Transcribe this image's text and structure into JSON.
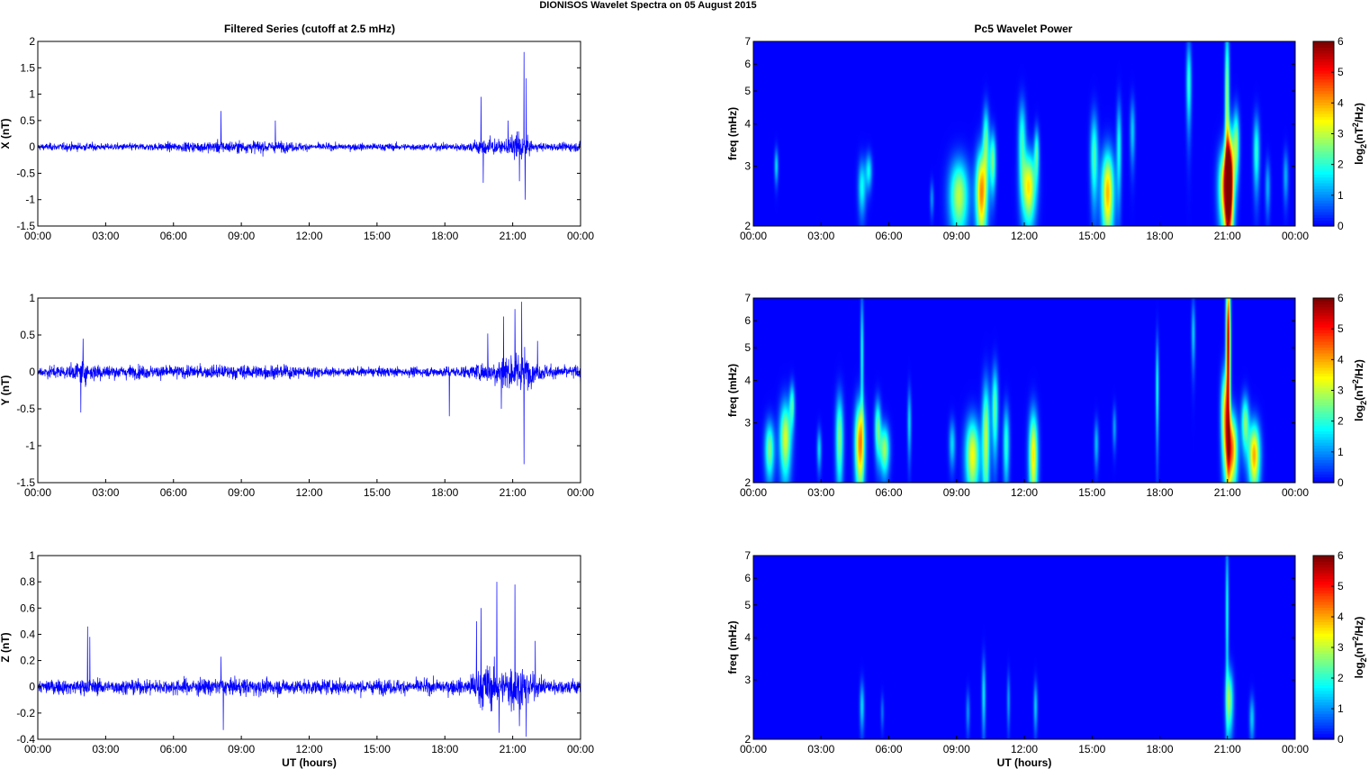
{
  "figure": {
    "title": "DIONISOS Wavelet Spectra on 05 August    2015",
    "left_title": "Filtered Series (cutoff at 2.5 mHz)",
    "right_title": "Pc5 Wavelet Power",
    "xlabel": "UT (hours)",
    "colorbar_label_main": "log",
    "colorbar_label_sub": "2",
    "colorbar_label_mid": "(nT",
    "colorbar_label_sup": "2",
    "colorbar_label_end": "/Hz)",
    "freq_label": "freq (mHz)"
  },
  "chart_data": [
    {
      "type": "line",
      "panel": "X",
      "ylabel": "X (nT)",
      "xlim": [
        0,
        24
      ],
      "ylim": [
        -1.5,
        2
      ],
      "xticks": [
        "00:00",
        "03:00",
        "06:00",
        "09:00",
        "12:00",
        "15:00",
        "18:00",
        "21:00",
        "00:00"
      ],
      "yticks": [
        "-1.5",
        "-1",
        "-0.5",
        "0",
        "0.5",
        "1",
        "1.5",
        "2"
      ],
      "ytick_values": [
        -1.5,
        -1,
        -0.5,
        0,
        0.5,
        1,
        1.5,
        2
      ],
      "color": "#0000ff",
      "noise_profile": {
        "x": [
          0,
          2,
          3,
          5,
          7,
          8,
          9,
          10,
          11,
          12,
          13,
          15,
          17,
          19,
          19.5,
          20,
          20.5,
          21,
          21.3,
          21.6,
          22,
          23,
          24
        ],
        "amplitude": [
          0.08,
          0.1,
          0.08,
          0.09,
          0.12,
          0.15,
          0.14,
          0.15,
          0.12,
          0.09,
          0.08,
          0.09,
          0.08,
          0.1,
          0.2,
          0.25,
          0.12,
          0.25,
          0.45,
          0.2,
          0.1,
          0.09,
          0.12
        ]
      },
      "spikes": [
        [
          8.1,
          0.68
        ],
        [
          10.5,
          0.5
        ],
        [
          19.6,
          0.95
        ],
        [
          19.7,
          -0.68
        ],
        [
          21.5,
          1.8
        ],
        [
          21.55,
          -1.0
        ],
        [
          21.6,
          1.3
        ],
        [
          21.3,
          -0.65
        ],
        [
          20.8,
          0.5
        ],
        [
          24,
          0.3
        ]
      ]
    },
    {
      "type": "line",
      "panel": "Y",
      "ylabel": "Y (nT)",
      "xlim": [
        0,
        24
      ],
      "ylim": [
        -1.5,
        1
      ],
      "xticks": [
        "00:00",
        "03:00",
        "06:00",
        "09:00",
        "12:00",
        "15:00",
        "18:00",
        "21:00",
        "00:00"
      ],
      "yticks": [
        "-1.5",
        "-1",
        "-0.5",
        "0",
        "0.5",
        "1"
      ],
      "ytick_values": [
        -1.5,
        -1,
        -0.5,
        0,
        0.5,
        1
      ],
      "color": "#0000ff",
      "noise_profile": {
        "x": [
          0,
          1.5,
          2,
          3,
          5,
          7,
          9,
          10.5,
          12,
          13,
          15,
          17,
          19,
          20,
          20.5,
          21,
          21.5,
          22,
          23,
          24
        ],
        "amplitude": [
          0.1,
          0.12,
          0.2,
          0.12,
          0.11,
          0.11,
          0.12,
          0.12,
          0.1,
          0.07,
          0.08,
          0.08,
          0.1,
          0.2,
          0.3,
          0.3,
          0.35,
          0.15,
          0.1,
          0.12
        ]
      },
      "spikes": [
        [
          1.9,
          -0.55
        ],
        [
          2.0,
          0.45
        ],
        [
          18.2,
          -0.6
        ],
        [
          19.9,
          0.52
        ],
        [
          20.5,
          -0.5
        ],
        [
          20.6,
          0.75
        ],
        [
          21.1,
          0.85
        ],
        [
          21.5,
          -1.25
        ],
        [
          21.4,
          0.95
        ],
        [
          22.1,
          0.42
        ],
        [
          24,
          -0.25
        ]
      ]
    },
    {
      "type": "line",
      "panel": "Z",
      "ylabel": "Z (nT)",
      "xlim": [
        0,
        24
      ],
      "ylim": [
        -0.4,
        1
      ],
      "xticks": [
        "00:00",
        "03:00",
        "06:00",
        "09:00",
        "12:00",
        "15:00",
        "18:00",
        "21:00",
        "00:00"
      ],
      "yticks": [
        "-0.4",
        "-0.2",
        "0",
        "0.2",
        "0.4",
        "0.6",
        "0.8",
        "1"
      ],
      "ytick_values": [
        -0.4,
        -0.2,
        0,
        0.2,
        0.4,
        0.6,
        0.8,
        1
      ],
      "color": "#0000ff",
      "noise_profile": {
        "x": [
          0,
          2,
          3,
          5,
          7,
          8,
          10,
          12,
          14,
          16,
          18,
          19,
          19.5,
          20,
          20.5,
          21,
          21.5,
          22,
          23,
          24
        ],
        "amplitude": [
          0.06,
          0.08,
          0.07,
          0.07,
          0.08,
          0.08,
          0.08,
          0.07,
          0.07,
          0.07,
          0.07,
          0.08,
          0.2,
          0.22,
          0.15,
          0.25,
          0.2,
          0.1,
          0.07,
          0.08
        ]
      },
      "spikes": [
        [
          2.2,
          0.46
        ],
        [
          2.3,
          0.38
        ],
        [
          8.2,
          -0.33
        ],
        [
          8.1,
          0.23
        ],
        [
          19.4,
          0.5
        ],
        [
          19.6,
          0.6
        ],
        [
          20.3,
          0.8
        ],
        [
          20.4,
          -0.35
        ],
        [
          21.1,
          0.78
        ],
        [
          21.3,
          -0.3
        ],
        [
          21.6,
          -0.38
        ],
        [
          22.0,
          0.35
        ],
        [
          24,
          0.16
        ]
      ]
    },
    {
      "type": "heatmap",
      "panel": "X wavelet",
      "ylabel": "freq (mHz)",
      "xlim": [
        0,
        24
      ],
      "ylim": [
        2,
        7
      ],
      "yscale": "log",
      "xticks": [
        "00:00",
        "03:00",
        "06:00",
        "09:00",
        "12:00",
        "15:00",
        "18:00",
        "21:00",
        "00:00"
      ],
      "yticks": [
        "2",
        "3",
        "4",
        "5",
        "6",
        "7"
      ],
      "ytick_values": [
        2,
        3,
        4,
        5,
        6,
        7
      ],
      "colorbar": {
        "min": 0,
        "max": 6,
        "ticks": [
          "0",
          "1",
          "2",
          "3",
          "4",
          "5",
          "6"
        ],
        "colormap": "jet"
      },
      "blobs": [
        {
          "t": 1.0,
          "f": 3.0,
          "dt": 0.06,
          "df": 0.25,
          "amp": 1.5
        },
        {
          "t": 4.8,
          "f": 2.6,
          "dt": 0.12,
          "df": 0.35,
          "amp": 1.8
        },
        {
          "t": 5.1,
          "f": 2.9,
          "dt": 0.1,
          "df": 0.25,
          "amp": 1.7
        },
        {
          "t": 7.9,
          "f": 2.4,
          "dt": 0.06,
          "df": 0.2,
          "amp": 1.0
        },
        {
          "t": 9.1,
          "f": 2.45,
          "dt": 0.3,
          "df": 0.45,
          "amp": 3.0
        },
        {
          "t": 10.1,
          "f": 2.5,
          "dt": 0.18,
          "df": 0.55,
          "amp": 4.2
        },
        {
          "t": 10.3,
          "f": 3.6,
          "dt": 0.1,
          "df": 0.6,
          "amp": 2.2
        },
        {
          "t": 10.6,
          "f": 3.1,
          "dt": 0.1,
          "df": 0.45,
          "amp": 2.5
        },
        {
          "t": 11.9,
          "f": 3.6,
          "dt": 0.12,
          "df": 0.7,
          "amp": 2.0
        },
        {
          "t": 12.2,
          "f": 2.6,
          "dt": 0.22,
          "df": 0.45,
          "amp": 3.6
        },
        {
          "t": 12.55,
          "f": 3.3,
          "dt": 0.08,
          "df": 0.4,
          "amp": 2.0
        },
        {
          "t": 15.1,
          "f": 3.2,
          "dt": 0.12,
          "df": 0.7,
          "amp": 2.2
        },
        {
          "t": 15.7,
          "f": 2.5,
          "dt": 0.2,
          "df": 0.55,
          "amp": 3.9
        },
        {
          "t": 16.2,
          "f": 3.4,
          "dt": 0.08,
          "df": 0.8,
          "amp": 1.8
        },
        {
          "t": 16.8,
          "f": 3.8,
          "dt": 0.08,
          "df": 0.6,
          "amp": 1.4
        },
        {
          "t": 19.3,
          "f": 5.3,
          "dt": 0.08,
          "df": 1.1,
          "amp": 2.0
        },
        {
          "t": 20.9,
          "f": 2.6,
          "dt": 0.2,
          "df": 0.5,
          "amp": 3.8
        },
        {
          "t": 21.0,
          "f": 4.8,
          "dt": 0.07,
          "df": 1.8,
          "amp": 2.8
        },
        {
          "t": 21.1,
          "f": 2.7,
          "dt": 0.13,
          "df": 0.7,
          "amp": 6.0
        },
        {
          "t": 21.4,
          "f": 3.5,
          "dt": 0.1,
          "df": 0.6,
          "amp": 2.6
        },
        {
          "t": 22.3,
          "f": 3.3,
          "dt": 0.1,
          "df": 0.6,
          "amp": 2.0
        },
        {
          "t": 22.8,
          "f": 2.6,
          "dt": 0.08,
          "df": 0.35,
          "amp": 1.2
        },
        {
          "t": 23.6,
          "f": 2.8,
          "dt": 0.08,
          "df": 0.35,
          "amp": 1.2
        }
      ]
    },
    {
      "type": "heatmap",
      "panel": "Y wavelet",
      "ylabel": "freq (mHz)",
      "xlim": [
        0,
        24
      ],
      "ylim": [
        2,
        7
      ],
      "yscale": "log",
      "xticks": [
        "00:00",
        "03:00",
        "06:00",
        "09:00",
        "12:00",
        "15:00",
        "18:00",
        "21:00",
        "00:00"
      ],
      "yticks": [
        "2",
        "3",
        "4",
        "5",
        "6",
        "7"
      ],
      "ytick_values": [
        2,
        3,
        4,
        5,
        6,
        7
      ],
      "colorbar": {
        "min": 0,
        "max": 6,
        "ticks": [
          "0",
          "1",
          "2",
          "3",
          "4",
          "5",
          "6"
        ],
        "colormap": "jet"
      },
      "blobs": [
        {
          "t": 0.7,
          "f": 2.5,
          "dt": 0.15,
          "df": 0.35,
          "amp": 2.6
        },
        {
          "t": 1.4,
          "f": 2.7,
          "dt": 0.18,
          "df": 0.5,
          "amp": 3.2
        },
        {
          "t": 1.7,
          "f": 3.4,
          "dt": 0.08,
          "df": 0.35,
          "amp": 2.0
        },
        {
          "t": 2.9,
          "f": 2.5,
          "dt": 0.07,
          "df": 0.25,
          "amp": 1.5
        },
        {
          "t": 3.8,
          "f": 2.7,
          "dt": 0.12,
          "df": 0.6,
          "amp": 2.6
        },
        {
          "t": 4.7,
          "f": 2.6,
          "dt": 0.15,
          "df": 0.55,
          "amp": 4.2
        },
        {
          "t": 4.8,
          "f": 4.8,
          "dt": 0.05,
          "df": 1.5,
          "amp": 1.8
        },
        {
          "t": 5.5,
          "f": 2.9,
          "dt": 0.1,
          "df": 0.4,
          "amp": 2.4
        },
        {
          "t": 5.8,
          "f": 2.5,
          "dt": 0.15,
          "df": 0.3,
          "amp": 2.8
        },
        {
          "t": 6.9,
          "f": 3.0,
          "dt": 0.06,
          "df": 0.5,
          "amp": 1.5
        },
        {
          "t": 8.8,
          "f": 2.6,
          "dt": 0.1,
          "df": 0.3,
          "amp": 1.5
        },
        {
          "t": 9.7,
          "f": 2.4,
          "dt": 0.22,
          "df": 0.45,
          "amp": 3.4
        },
        {
          "t": 10.3,
          "f": 2.7,
          "dt": 0.12,
          "df": 0.8,
          "amp": 3.0
        },
        {
          "t": 10.7,
          "f": 3.3,
          "dt": 0.1,
          "df": 0.7,
          "amp": 2.4
        },
        {
          "t": 11.2,
          "f": 2.6,
          "dt": 0.1,
          "df": 0.5,
          "amp": 2.0
        },
        {
          "t": 12.4,
          "f": 2.4,
          "dt": 0.14,
          "df": 0.55,
          "amp": 3.6
        },
        {
          "t": 15.2,
          "f": 2.6,
          "dt": 0.07,
          "df": 0.3,
          "amp": 1.3
        },
        {
          "t": 16.0,
          "f": 2.9,
          "dt": 0.06,
          "df": 0.3,
          "amp": 1.1
        },
        {
          "t": 17.9,
          "f": 3.8,
          "dt": 0.05,
          "df": 1.0,
          "amp": 1.8
        },
        {
          "t": 19.5,
          "f": 5.5,
          "dt": 0.06,
          "df": 0.9,
          "amp": 1.4
        },
        {
          "t": 20.9,
          "f": 3.2,
          "dt": 0.12,
          "df": 0.7,
          "amp": 3.4
        },
        {
          "t": 21.05,
          "f": 5.2,
          "dt": 0.07,
          "df": 2.0,
          "amp": 5.6
        },
        {
          "t": 21.2,
          "f": 2.5,
          "dt": 0.18,
          "df": 0.45,
          "amp": 4.4
        },
        {
          "t": 21.8,
          "f": 3.0,
          "dt": 0.12,
          "df": 0.4,
          "amp": 2.6
        },
        {
          "t": 22.2,
          "f": 2.4,
          "dt": 0.18,
          "df": 0.4,
          "amp": 4.0
        }
      ]
    },
    {
      "type": "heatmap",
      "panel": "Z wavelet",
      "ylabel": "freq (mHz)",
      "xlim": [
        0,
        24
      ],
      "ylim": [
        2,
        7
      ],
      "yscale": "log",
      "xticks": [
        "00:00",
        "03:00",
        "06:00",
        "09:00",
        "12:00",
        "15:00",
        "18:00",
        "21:00",
        "00:00"
      ],
      "yticks": [
        "2",
        "3",
        "4",
        "5",
        "6",
        "7"
      ],
      "ytick_values": [
        2,
        3,
        4,
        5,
        6,
        7
      ],
      "colorbar": {
        "min": 0,
        "max": 6,
        "ticks": [
          "0",
          "1",
          "2",
          "3",
          "4",
          "5",
          "6"
        ],
        "colormap": "jet"
      },
      "blobs": [
        {
          "t": 4.8,
          "f": 2.5,
          "dt": 0.07,
          "df": 0.3,
          "amp": 1.5
        },
        {
          "t": 5.7,
          "f": 2.4,
          "dt": 0.05,
          "df": 0.2,
          "amp": 0.8
        },
        {
          "t": 9.5,
          "f": 2.4,
          "dt": 0.06,
          "df": 0.25,
          "amp": 1.0
        },
        {
          "t": 10.2,
          "f": 2.7,
          "dt": 0.06,
          "df": 0.5,
          "amp": 1.6
        },
        {
          "t": 11.3,
          "f": 2.6,
          "dt": 0.05,
          "df": 0.35,
          "amp": 1.1
        },
        {
          "t": 12.5,
          "f": 2.5,
          "dt": 0.06,
          "df": 0.3,
          "amp": 1.4
        },
        {
          "t": 21.0,
          "f": 4.8,
          "dt": 0.05,
          "df": 1.8,
          "amp": 1.8
        },
        {
          "t": 21.1,
          "f": 2.6,
          "dt": 0.12,
          "df": 0.4,
          "amp": 2.6
        },
        {
          "t": 22.1,
          "f": 2.3,
          "dt": 0.08,
          "df": 0.25,
          "amp": 1.4
        }
      ]
    }
  ]
}
